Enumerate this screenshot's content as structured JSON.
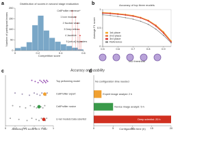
{
  "panel_labels": [
    "a",
    "b",
    "c",
    "d"
  ],
  "section_title": "Accuracy and usability",
  "chart_data": [
    {
      "type": "histogram",
      "title": "Distribution of scores in second stage evaluation",
      "x_label": "Competition score",
      "y_label": "Number of participant teams",
      "bins": [
        0,
        0.05,
        0.1,
        0.15,
        0.2,
        0.25,
        0.3,
        0.35,
        0.4,
        0.45,
        0.5,
        0.55,
        0.6
      ],
      "values": [
        12,
        18,
        40,
        120,
        165,
        95,
        60,
        42,
        30,
        22,
        14,
        6
      ],
      "color": "#7aa7c7",
      "xlim": [
        0,
        0.6
      ],
      "xticks": [
        0,
        0.2,
        0.4,
        0.6
      ],
      "ylim": [
        0,
        200
      ],
      "yticks": [
        0,
        50,
        100,
        150,
        200
      ],
      "annotations": [
        {
          "text": "CellProfiler reference*",
          "x": 0.5
        },
        {
          "text": "1 Icon mozsaw",
          "x": 0.53
        },
        {
          "text": "2 Nuclear vision",
          "x": 0.55
        },
        {
          "text": "3 Deep retina",
          "x": 0.56
        },
        {
          "text": "4 Jacobkie",
          "x": 0.57
        },
        {
          "text": "5 [ods.ai] topcoders",
          "x": 0.58
        }
      ],
      "annotation_color": "#d62f2f"
    },
    {
      "type": "line",
      "title": "Accuracy of top three models",
      "x_label": "IoU threshold",
      "y_label": "Average F1 score",
      "x": [
        0.5,
        0.55,
        0.6,
        0.65,
        0.7,
        0.75,
        0.8,
        0.85,
        0.9,
        0.95
      ],
      "series": [
        {
          "name": "1st place",
          "color": "#f5a623",
          "values": [
            0.92,
            0.91,
            0.89,
            0.87,
            0.84,
            0.79,
            0.71,
            0.58,
            0.4,
            0.15
          ]
        },
        {
          "name": "2nd place",
          "color": "#e8743b",
          "values": [
            0.91,
            0.9,
            0.88,
            0.86,
            0.83,
            0.78,
            0.7,
            0.57,
            0.38,
            0.13
          ]
        },
        {
          "name": "3rd place",
          "color": "#d62f2f",
          "values": [
            0.9,
            0.89,
            0.87,
            0.85,
            0.82,
            0.77,
            0.69,
            0.55,
            0.36,
            0.12
          ]
        },
        {
          "name": "Reference",
          "color": "#8a8a8a",
          "values": [
            0.86,
            0.84,
            0.81,
            0.78,
            0.74,
            0.68,
            0.6,
            0.47,
            0.3,
            0.1
          ]
        }
      ],
      "xlim": [
        0.5,
        0.95
      ],
      "xticks": [
        0.5,
        0.6,
        0.7,
        0.8,
        0.9
      ],
      "ylim": [
        0,
        1
      ],
      "yticks": [
        0,
        0.5,
        1
      ],
      "legend": "lower-left"
    },
    {
      "type": "strip",
      "x_label": "Accuracy F1 score at 0.7 IoU",
      "categories": [
        "Top performing model",
        "CellProfiler expert",
        "CellProfiler novice",
        "U-net models Data scientist"
      ],
      "values": [
        [
          0.55,
          0.62,
          0.68,
          0.72,
          0.75,
          0.78,
          0.8,
          0.82,
          0.84,
          0.86,
          0.88
        ],
        [
          0.2,
          0.35,
          0.5,
          0.6,
          0.66,
          0.72,
          0.76,
          0.8,
          0.84,
          0.87
        ],
        [
          0.15,
          0.3,
          0.42,
          0.52,
          0.6,
          0.65,
          0.7,
          0.74,
          0.78,
          0.82
        ],
        [
          0.1,
          0.28,
          0.45,
          0.55,
          0.64,
          0.7,
          0.75,
          0.8,
          0.83,
          0.86
        ]
      ],
      "colors": [
        "#9b59b6",
        "#9b8fb0",
        "#a0a0a0",
        "#a0a0a0"
      ],
      "highlights": [
        null,
        0.82,
        0.7,
        0.8
      ],
      "highlight_colors": [
        null,
        "#f0a030",
        "#3a9a4a",
        "#d03020"
      ],
      "xlim": [
        0,
        1
      ],
      "xticks": [
        0,
        0.2,
        0.4,
        0.6,
        0.8,
        1
      ]
    },
    {
      "type": "hbar",
      "x_label": "Configuration time (h)",
      "categories": [
        "No configuration time needed",
        "Expert image analyst: 2 h",
        "Novice image analyst: 5 h",
        "Deep scientist: 20 h"
      ],
      "values": [
        0,
        2,
        5,
        20
      ],
      "colors": [
        "#ffffff",
        "#f0a030",
        "#3a9a4a",
        "#d03020"
      ],
      "xlim": [
        0,
        20
      ],
      "xticks": [
        0,
        5,
        10,
        15,
        20
      ]
    }
  ]
}
